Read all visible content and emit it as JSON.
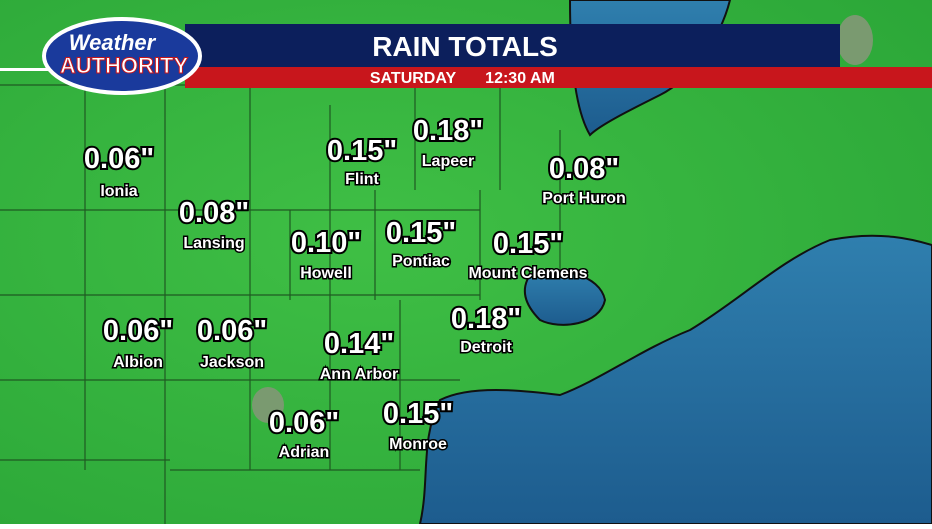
{
  "header": {
    "logo_top": "Weather",
    "logo_bottom": "AUTHORITY",
    "title": "RAIN TOTALS",
    "day": "SATURDAY",
    "time": "12:30 AM"
  },
  "cities": [
    {
      "name": "Ionia",
      "total": "0.06\""
    },
    {
      "name": "Lansing",
      "total": "0.08\""
    },
    {
      "name": "Flint",
      "total": "0.15\""
    },
    {
      "name": "Lapeer",
      "total": "0.18\""
    },
    {
      "name": "Port Huron",
      "total": "0.08\""
    },
    {
      "name": "Howell",
      "total": "0.10\""
    },
    {
      "name": "Pontiac",
      "total": "0.15\""
    },
    {
      "name": "Mount Clemens",
      "total": "0.15\""
    },
    {
      "name": "Albion",
      "total": "0.06\""
    },
    {
      "name": "Jackson",
      "total": "0.06\""
    },
    {
      "name": "Detroit",
      "total": "0.18\""
    },
    {
      "name": "Ann Arbor",
      "total": "0.14\""
    },
    {
      "name": "Adrian",
      "total": "0.06\""
    },
    {
      "name": "Monroe",
      "total": "0.15\""
    }
  ]
}
